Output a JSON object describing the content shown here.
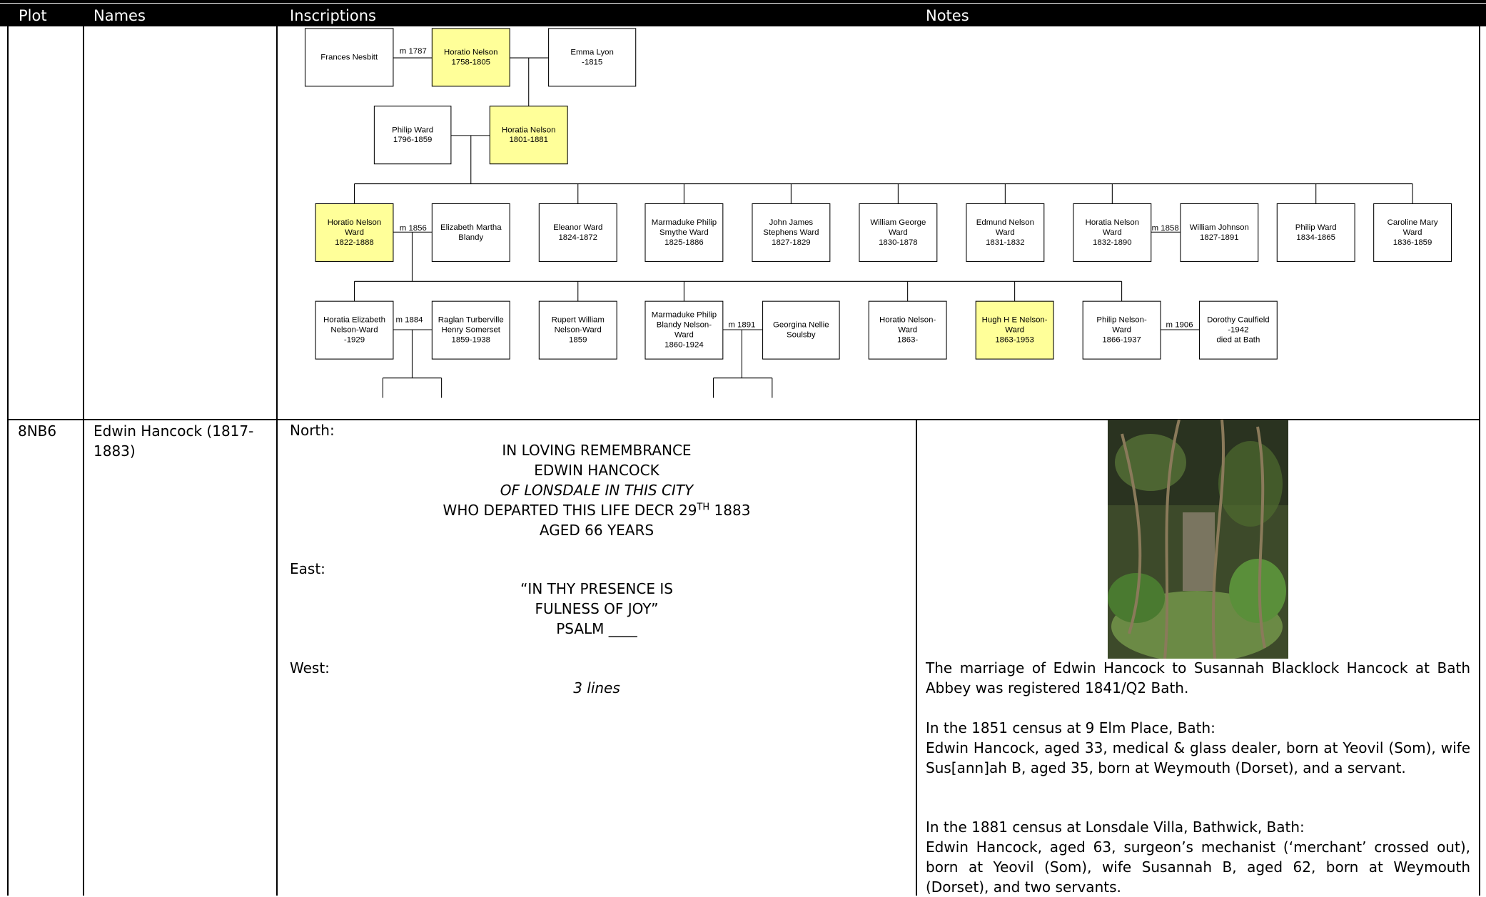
{
  "header": {
    "columns": [
      "Plot",
      "Names",
      "Inscriptions",
      "Notes"
    ]
  },
  "tree": {
    "nodes": [
      {
        "lines": [
          "Frances Nesbitt"
        ]
      },
      {
        "lines": [
          "Horatio Nelson",
          "1758-1805"
        ],
        "highlight": true
      },
      {
        "lines": [
          "Emma Lyon",
          "-1815"
        ]
      },
      {
        "lines": [
          "Philip Ward",
          "1796-1859"
        ]
      },
      {
        "lines": [
          "Horatia Nelson",
          "1801-1881"
        ],
        "highlight": true
      },
      {
        "lines": [
          "Horatio Nelson",
          "Ward",
          "1822-1888"
        ],
        "highlight": true
      },
      {
        "lines": [
          "Elizabeth Martha",
          "Blandy"
        ]
      },
      {
        "lines": [
          "Eleanor Ward",
          "1824-1872"
        ]
      },
      {
        "lines": [
          "Marmaduke Philip",
          "Smythe Ward",
          "1825-1886"
        ]
      },
      {
        "lines": [
          "John James",
          "Stephens Ward",
          "1827-1829"
        ]
      },
      {
        "lines": [
          "William George",
          "Ward",
          "1830-1878"
        ]
      },
      {
        "lines": [
          "Edmund Nelson",
          "Ward",
          "1831-1832"
        ]
      },
      {
        "lines": [
          "Horatia Nelson",
          "Ward",
          "1832-1890"
        ]
      },
      {
        "lines": [
          "William Johnson",
          "1827-1891"
        ]
      },
      {
        "lines": [
          "Philip Ward",
          "1834-1865"
        ]
      },
      {
        "lines": [
          "Caroline Mary",
          "Ward",
          "1836-1859"
        ]
      },
      {
        "lines": [
          "Horatia Elizabeth",
          "Nelson-Ward",
          "-1929"
        ]
      },
      {
        "lines": [
          "Raglan Turberville",
          "Henry Somerset",
          "1859-1938"
        ]
      },
      {
        "lines": [
          "Rupert William",
          "Nelson-Ward",
          "1859"
        ]
      },
      {
        "lines": [
          "Marmaduke Philip",
          "Blandy Nelson-",
          "Ward",
          "1860-1924"
        ]
      },
      {
        "lines": [
          "Georgina Nellie",
          "Soulsby"
        ]
      },
      {
        "lines": [
          "Horatio Nelson-",
          "Ward",
          "1863-"
        ]
      },
      {
        "lines": [
          "Hugh H E Nelson-",
          "Ward",
          "1863-1953"
        ],
        "highlight": true
      },
      {
        "lines": [
          "Philip Nelson-",
          "Ward",
          "1866-1937"
        ]
      },
      {
        "lines": [
          "Dorothy Caulfield",
          "-1942",
          "died at Bath"
        ]
      }
    ],
    "marriages": [
      "m 1787",
      "m 1856",
      "m 1858",
      "m 1884",
      "m 1891",
      "m 1906"
    ]
  },
  "row": {
    "plot": "8NB6",
    "names": "Edwin Hancock (1817-1883)",
    "inscriptions": {
      "north": {
        "label": "North:",
        "lines": [
          "IN LOVING REMEMBRANCE",
          "EDWIN HANCOCK",
          "OF LONSDALE IN THIS CITY",
          "WHO DEPARTED THIS LIFE DECR 29",
          "TH",
          " 1883",
          "AGED 66 YEARS"
        ]
      },
      "east": {
        "label": "East:",
        "lines": [
          "“IN THY PRESENCE IS",
          "FULNESS OF JOY”",
          "PSALM ____"
        ]
      },
      "west": {
        "label": "West:",
        "lines": [
          "3 lines"
        ]
      }
    },
    "notes": [
      {
        "text": "The marriage of Edwin Hancock to Susannah Blacklock Hancock at Bath Abbey was registered 1841/Q2 Bath."
      },
      {
        "heading": "In the 1851 census at 9 Elm Place, Bath:",
        "text": "Edwin Hancock, aged 33, medical & glass dealer, born at Yeovil (Som), wife Sus[ann]ah B, aged 35, born at Weymouth (Dorset), and a servant."
      },
      {
        "heading": "In the 1881 census at Lonsdale Villa, Bathwick, Bath:",
        "text": "Edwin Hancock, aged 63, surgeon’s mechanist (‘merchant’ crossed out), born at Yeovil (Som), wife Susannah B, aged 62, born at Weymouth (Dorset), and two servants."
      }
    ]
  }
}
